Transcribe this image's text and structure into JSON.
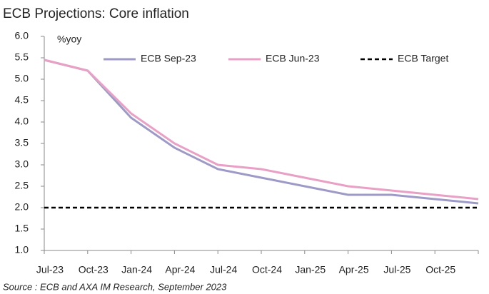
{
  "chart_data": {
    "type": "line",
    "title": "ECB Projections: Core inflation",
    "y_label": "%yoy",
    "source": "Source : ECB and AXA IM Research, September 2023",
    "categories": [
      "Jul-23",
      "Oct-23",
      "Jan-24",
      "Apr-24",
      "Jul-24",
      "Oct-24",
      "Jan-25",
      "Apr-25",
      "Jul-25",
      "Oct-25",
      null
    ],
    "series": [
      {
        "name": "ECB Sep-23",
        "color": "#9e9ac8",
        "dash": false,
        "values": [
          5.45,
          5.2,
          4.1,
          3.4,
          2.9,
          2.7,
          2.5,
          2.3,
          2.3,
          2.2,
          2.1
        ]
      },
      {
        "name": "ECB Jun-23",
        "color": "#e8a0c4",
        "dash": false,
        "values": [
          5.45,
          5.2,
          4.2,
          3.5,
          3.0,
          2.9,
          2.7,
          2.5,
          2.4,
          2.3,
          2.2
        ]
      },
      {
        "name": "ECB Target",
        "color": "#000000",
        "dash": true,
        "values": [
          2.0,
          2.0,
          2.0,
          2.0,
          2.0,
          2.0,
          2.0,
          2.0,
          2.0,
          2.0,
          2.0
        ]
      }
    ],
    "ylim": [
      1,
      6
    ],
    "yticks": [
      {
        "value": 1,
        "label": "1.0"
      },
      {
        "value": 1.5,
        "label": "1.5"
      },
      {
        "value": 2,
        "label": "2.0"
      },
      {
        "value": 2.5,
        "label": "2.5"
      },
      {
        "value": 3,
        "label": "3.0"
      },
      {
        "value": 3.5,
        "label": "3.5"
      },
      {
        "value": 4,
        "label": "4.0"
      },
      {
        "value": 4.5,
        "label": "4.5"
      },
      {
        "value": 5,
        "label": "5.0"
      },
      {
        "value": 5.5,
        "label": "5.5"
      },
      {
        "value": 6,
        "label": "6.0"
      }
    ],
    "grid": false,
    "legend": "top"
  }
}
